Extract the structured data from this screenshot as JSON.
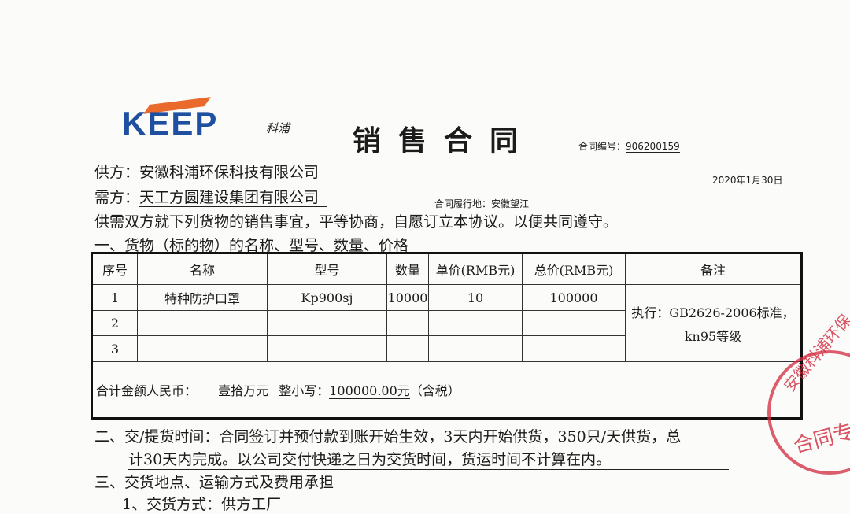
{
  "header": {
    "logo_text": "KEEP",
    "logo_sub": "科浦",
    "title": "销售合同",
    "contract_no_label": "合同编号：",
    "contract_no": "906200159",
    "date": "2020年1月30日",
    "place_label": "合同履行地：安徽望江"
  },
  "parties": {
    "supplier": "供方：安徽科浦环保科技有限公司",
    "buyer_label": "需方：",
    "buyer": "天工方圆建设集团有限公司"
  },
  "intro": "供需双方就下列货物的销售事宜，平等协商，自愿订立本协议。以便共同遵守。",
  "section1": "一、货物（标的物）的名称、型号、数量、价格",
  "table": {
    "headers": [
      "序号",
      "名称",
      "型号",
      "数量",
      "单价(RMB元)",
      "总价(RMB元)",
      "备注"
    ],
    "rows": [
      [
        "1",
        "特种防护口罩",
        "Kp900sj",
        "10000",
        "10",
        "100000"
      ],
      [
        "2",
        "",
        "",
        "",
        "",
        ""
      ],
      [
        "3",
        "",
        "",
        "",
        "",
        ""
      ]
    ],
    "remark_line1": "执行：GB2626-2006标准，",
    "remark_line2": "kn95等级",
    "total_label": "合计金额人民币：",
    "total_words": "壹拾万元",
    "total_small_label": "整小写：",
    "total_number": "100000.00元",
    "total_note": "（含税）"
  },
  "section2": {
    "label": "二、交/提货时间：",
    "line1": "合同签订并预付款到账开始生效，3天内开始供货，350只/天供货，总",
    "line2": "计30天内完成。以公司交付快递之日为交货时间，货运时间不计算在内。"
  },
  "section3": "三、交货地点、运输方式及费用承担",
  "section3_item1": "1、交货方式：供方工厂",
  "stamp": {
    "top_text": "安徽科浦环保",
    "center_text": "合同专",
    "color": "#d2283c"
  }
}
